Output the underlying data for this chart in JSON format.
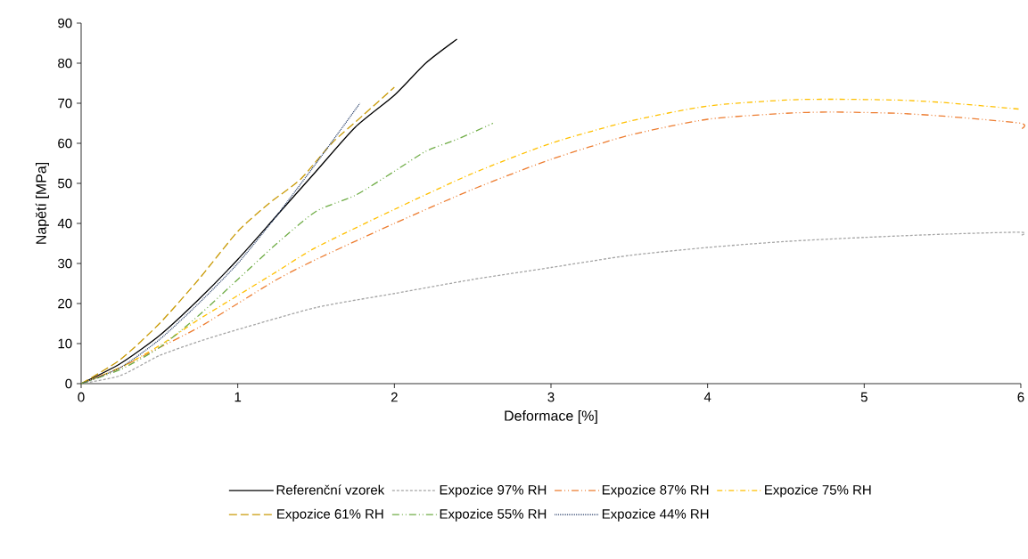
{
  "chart_data": {
    "type": "line",
    "xlabel": "Deformace [%]",
    "ylabel": "Napětí [MPa]",
    "xlim": [
      0,
      6
    ],
    "ylim": [
      0,
      90
    ],
    "xticks": [
      0,
      1,
      2,
      3,
      4,
      5,
      6
    ],
    "yticks": [
      0,
      10,
      20,
      30,
      40,
      50,
      60,
      70,
      80,
      90
    ],
    "legend": "bottom",
    "series": [
      {
        "name": "Referenční vzorek",
        "color": "#000000",
        "line_style": "solid",
        "x": [
          0,
          0.25,
          0.5,
          0.75,
          1,
          1.25,
          1.5,
          1.75,
          2,
          2.2,
          2.4
        ],
        "values": [
          0,
          5,
          12,
          21,
          31,
          42,
          53,
          64,
          72,
          80,
          86
        ]
      },
      {
        "name": "Expozice 97% RH",
        "color": "#a5a5a5",
        "line_style": "dashed",
        "x": [
          0,
          0.25,
          0.5,
          0.75,
          1,
          1.5,
          2,
          2.5,
          3,
          3.5,
          4,
          4.5,
          5,
          5.5,
          6,
          6
        ],
        "values": [
          0,
          2,
          7,
          10.5,
          13.5,
          19,
          22.5,
          26,
          29,
          32,
          34,
          35.5,
          36.5,
          37.3,
          37.8,
          37
        ]
      },
      {
        "name": "Expozice 87% RH",
        "color": "#ed7d31",
        "line_style": "dashdotdot",
        "x": [
          0,
          0.25,
          0.5,
          0.75,
          1,
          1.25,
          1.5,
          2,
          2.5,
          3,
          3.5,
          4,
          4.5,
          4.8,
          5.2,
          5.5,
          6,
          6
        ],
        "values": [
          0,
          4,
          9,
          14,
          20,
          26,
          31,
          40,
          48.5,
          56,
          62,
          66,
          67.5,
          67.8,
          67.5,
          66.8,
          65,
          63.5
        ]
      },
      {
        "name": "Expozice 75% RH",
        "color": "#ffc000",
        "line_style": "dashdot",
        "x": [
          0,
          0.25,
          0.5,
          0.75,
          1,
          1.25,
          1.5,
          2,
          2.5,
          3,
          3.5,
          4,
          4.5,
          4.8,
          5.2,
          5.5,
          6
        ],
        "values": [
          0,
          4,
          9.5,
          16,
          22,
          28,
          34,
          43.5,
          52.5,
          60,
          65.5,
          69.3,
          70.8,
          71,
          70.8,
          70.2,
          68.5
        ]
      },
      {
        "name": "Expozice 61% RH",
        "color": "#c99a06",
        "line_style": "longdashed",
        "x": [
          0,
          0.25,
          0.5,
          0.75,
          1,
          1.2,
          1.4,
          1.6,
          1.8,
          2
        ],
        "values": [
          0,
          6,
          15,
          26,
          38,
          45,
          51,
          60,
          67,
          74
        ]
      },
      {
        "name": "Expozice 55% RH",
        "color": "#70ad47",
        "line_style": "dashdotdot",
        "x": [
          0,
          0.25,
          0.5,
          0.75,
          1,
          1.25,
          1.5,
          1.75,
          2,
          2.2,
          2.4,
          2.63
        ],
        "values": [
          0,
          3.5,
          9,
          17,
          26,
          35,
          43,
          47,
          53,
          58,
          61,
          65
        ]
      },
      {
        "name": "Expozice 44% RH",
        "color": "#203864",
        "line_style": "dotted",
        "x": [
          0,
          0.25,
          0.5,
          0.75,
          1,
          1.25,
          1.5,
          1.65,
          1.78
        ],
        "values": [
          0,
          4,
          11,
          20,
          30,
          42,
          55,
          63,
          70
        ]
      }
    ]
  }
}
